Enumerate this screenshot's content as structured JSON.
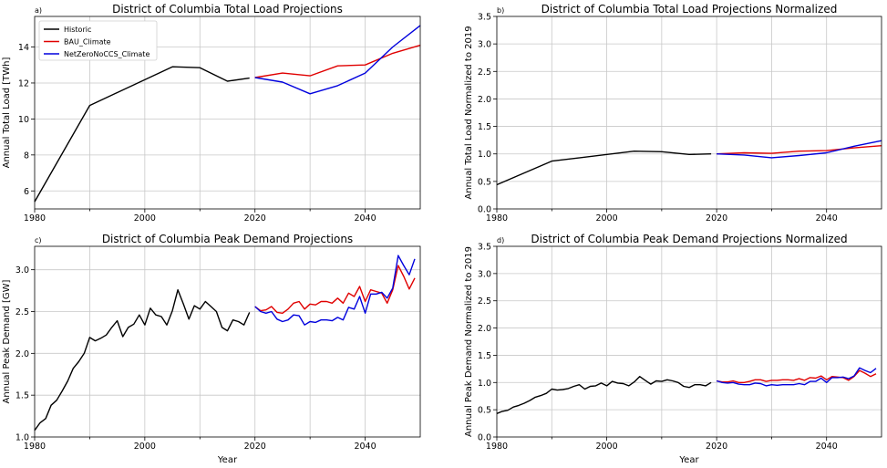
{
  "colors": {
    "historic": "#000000",
    "bau": "#e00000",
    "netzero": "#0000dd",
    "grid": "#c8c8c8",
    "frame": "#000000"
  },
  "legend": [
    {
      "label": "Historic",
      "color": "#000000"
    },
    {
      "label": "BAU_Climate",
      "color": "#e00000"
    },
    {
      "label": "NetZeroNoCCS_Climate",
      "color": "#0000dd"
    }
  ],
  "chart_data": [
    {
      "panel": "a)",
      "type": "line",
      "title": "District of Columbia Total Load Projections",
      "xlabel": "",
      "ylabel": "Annual Total Load [TWh]",
      "xlim": [
        1980,
        2050
      ],
      "ylim": [
        5,
        15.7
      ],
      "xticks": [
        1980,
        2000,
        2020,
        2040
      ],
      "yticks": [
        6,
        8,
        10,
        12,
        14
      ],
      "grid": true,
      "legend": "top-left",
      "series": [
        {
          "name": "Historic",
          "color": "#000000",
          "x": [
            1980,
            1990,
            2005,
            2010,
            2015,
            2019
          ],
          "y": [
            5.4,
            10.75,
            12.9,
            12.85,
            12.1,
            12.27
          ]
        },
        {
          "name": "BAU_Climate",
          "color": "#e00000",
          "x": [
            2020,
            2025,
            2030,
            2035,
            2040,
            2045,
            2050
          ],
          "y": [
            12.3,
            12.55,
            12.4,
            12.95,
            13.0,
            13.65,
            14.1
          ]
        },
        {
          "name": "NetZeroNoCCS_Climate",
          "color": "#0000dd",
          "x": [
            2020,
            2025,
            2030,
            2035,
            2040,
            2045,
            2050
          ],
          "y": [
            12.3,
            12.05,
            11.4,
            11.85,
            12.55,
            14.0,
            15.2
          ]
        }
      ]
    },
    {
      "panel": "b)",
      "type": "line",
      "title": "District of Columbia Total Load Projections Normalized",
      "xlabel": "",
      "ylabel": "Annual Total Load Normalized to 2019",
      "xlim": [
        1980,
        2050
      ],
      "ylim": [
        0,
        3.5
      ],
      "xticks": [
        1980,
        2000,
        2020,
        2040
      ],
      "yticks": [
        0.0,
        0.5,
        1.0,
        1.5,
        2.0,
        2.5,
        3.0,
        3.5
      ],
      "grid": true,
      "legend": "none",
      "series": [
        {
          "name": "Historic",
          "color": "#000000",
          "x": [
            1980,
            1990,
            2005,
            2010,
            2015,
            2019
          ],
          "y": [
            0.44,
            0.87,
            1.05,
            1.04,
            0.99,
            1.0
          ]
        },
        {
          "name": "BAU_Climate",
          "color": "#e00000",
          "x": [
            2020,
            2025,
            2030,
            2035,
            2040,
            2045,
            2050
          ],
          "y": [
            1.0,
            1.02,
            1.01,
            1.05,
            1.06,
            1.11,
            1.15
          ]
        },
        {
          "name": "NetZeroNoCCS_Climate",
          "color": "#0000dd",
          "x": [
            2020,
            2025,
            2030,
            2035,
            2040,
            2045,
            2050
          ],
          "y": [
            1.0,
            0.98,
            0.93,
            0.97,
            1.02,
            1.14,
            1.24
          ]
        }
      ]
    },
    {
      "panel": "c)",
      "type": "line",
      "title": "District of Columbia Peak Demand Projections",
      "xlabel": "Year",
      "ylabel": "Annual Peak Demand [GW]",
      "xlim": [
        1980,
        2050
      ],
      "ylim": [
        1.0,
        3.28
      ],
      "xticks": [
        1980,
        2000,
        2020,
        2040
      ],
      "yticks": [
        1.0,
        1.5,
        2.0,
        2.5,
        3.0
      ],
      "grid": true,
      "legend": "none",
      "series": [
        {
          "name": "Historic",
          "color": "#000000",
          "x": [
            1980,
            1981,
            1982,
            1983,
            1984,
            1985,
            1986,
            1987,
            1988,
            1989,
            1990,
            1991,
            1992,
            1993,
            1994,
            1995,
            1996,
            1997,
            1998,
            1999,
            2000,
            2001,
            2002,
            2003,
            2004,
            2005,
            2006,
            2007,
            2008,
            2009,
            2010,
            2011,
            2012,
            2013,
            2014,
            2015,
            2016,
            2017,
            2018,
            2019
          ],
          "y": [
            1.08,
            1.17,
            1.22,
            1.38,
            1.44,
            1.55,
            1.67,
            1.82,
            1.9,
            2.0,
            2.19,
            2.15,
            2.18,
            2.22,
            2.31,
            2.39,
            2.2,
            2.31,
            2.35,
            2.46,
            2.34,
            2.54,
            2.46,
            2.44,
            2.34,
            2.51,
            2.76,
            2.59,
            2.41,
            2.57,
            2.53,
            2.62,
            2.56,
            2.5,
            2.31,
            2.27,
            2.4,
            2.38,
            2.34,
            2.49
          ]
        },
        {
          "name": "BAU_Climate",
          "color": "#e00000",
          "x": [
            2020,
            2021,
            2022,
            2023,
            2024,
            2025,
            2026,
            2027,
            2028,
            2029,
            2030,
            2031,
            2032,
            2033,
            2034,
            2035,
            2036,
            2037,
            2038,
            2039,
            2040,
            2041,
            2042,
            2043,
            2044,
            2045,
            2046,
            2047,
            2048,
            2049
          ],
          "y": [
            2.56,
            2.51,
            2.52,
            2.56,
            2.49,
            2.48,
            2.53,
            2.6,
            2.62,
            2.53,
            2.59,
            2.58,
            2.62,
            2.62,
            2.6,
            2.66,
            2.6,
            2.72,
            2.68,
            2.8,
            2.62,
            2.76,
            2.74,
            2.72,
            2.6,
            2.76,
            3.05,
            2.92,
            2.77,
            2.9
          ]
        },
        {
          "name": "NetZeroNoCCS_Climate",
          "color": "#0000dd",
          "x": [
            2020,
            2021,
            2022,
            2023,
            2024,
            2025,
            2026,
            2027,
            2028,
            2029,
            2030,
            2031,
            2032,
            2033,
            2034,
            2035,
            2036,
            2037,
            2038,
            2039,
            2040,
            2041,
            2042,
            2043,
            2044,
            2045,
            2046,
            2047,
            2048,
            2049
          ],
          "y": [
            2.56,
            2.5,
            2.48,
            2.5,
            2.41,
            2.38,
            2.4,
            2.46,
            2.45,
            2.34,
            2.38,
            2.37,
            2.4,
            2.4,
            2.39,
            2.43,
            2.4,
            2.55,
            2.53,
            2.68,
            2.48,
            2.71,
            2.71,
            2.73,
            2.66,
            2.78,
            3.17,
            3.05,
            2.94,
            3.13
          ]
        }
      ]
    },
    {
      "panel": "d)",
      "type": "line",
      "title": "District of Columbia Peak Demand Projections Normalized",
      "xlabel": "Year",
      "ylabel": "Annual Peak Demand Normalized to 2019",
      "xlim": [
        1980,
        2050
      ],
      "ylim": [
        0,
        3.5
      ],
      "xticks": [
        1980,
        2000,
        2020,
        2040
      ],
      "yticks": [
        0.0,
        0.5,
        1.0,
        1.5,
        2.0,
        2.5,
        3.0,
        3.5
      ],
      "grid": true,
      "legend": "none",
      "series": [
        {
          "name": "Historic",
          "color": "#000000",
          "x": [
            1980,
            1981,
            1982,
            1983,
            1984,
            1985,
            1986,
            1987,
            1988,
            1989,
            1990,
            1991,
            1992,
            1993,
            1994,
            1995,
            1996,
            1997,
            1998,
            1999,
            2000,
            2001,
            2002,
            2003,
            2004,
            2005,
            2006,
            2007,
            2008,
            2009,
            2010,
            2011,
            2012,
            2013,
            2014,
            2015,
            2016,
            2017,
            2018,
            2019
          ],
          "y": [
            0.43,
            0.47,
            0.49,
            0.55,
            0.58,
            0.62,
            0.67,
            0.73,
            0.76,
            0.8,
            0.88,
            0.86,
            0.87,
            0.89,
            0.93,
            0.96,
            0.88,
            0.93,
            0.94,
            0.99,
            0.94,
            1.02,
            0.99,
            0.98,
            0.94,
            1.01,
            1.11,
            1.04,
            0.97,
            1.03,
            1.02,
            1.05,
            1.03,
            1.0,
            0.93,
            0.91,
            0.96,
            0.96,
            0.94,
            1.0
          ]
        },
        {
          "name": "BAU_Climate",
          "color": "#e00000",
          "x": [
            2020,
            2021,
            2022,
            2023,
            2024,
            2025,
            2026,
            2027,
            2028,
            2029,
            2030,
            2031,
            2032,
            2033,
            2034,
            2035,
            2036,
            2037,
            2038,
            2039,
            2040,
            2041,
            2042,
            2043,
            2044,
            2045,
            2046,
            2047,
            2048,
            2049
          ],
          "y": [
            1.03,
            1.01,
            1.01,
            1.03,
            1.0,
            1.0,
            1.02,
            1.05,
            1.05,
            1.02,
            1.04,
            1.04,
            1.05,
            1.05,
            1.04,
            1.07,
            1.04,
            1.09,
            1.08,
            1.12,
            1.05,
            1.11,
            1.1,
            1.09,
            1.04,
            1.11,
            1.22,
            1.17,
            1.11,
            1.16
          ]
        },
        {
          "name": "NetZeroNoCCS_Climate",
          "color": "#0000dd",
          "x": [
            2020,
            2021,
            2022,
            2023,
            2024,
            2025,
            2026,
            2027,
            2028,
            2029,
            2030,
            2031,
            2032,
            2033,
            2034,
            2035,
            2036,
            2037,
            2038,
            2039,
            2040,
            2041,
            2042,
            2043,
            2044,
            2045,
            2046,
            2047,
            2048,
            2049
          ],
          "y": [
            1.03,
            1.0,
            0.99,
            1.0,
            0.97,
            0.96,
            0.96,
            0.99,
            0.98,
            0.94,
            0.96,
            0.95,
            0.96,
            0.96,
            0.96,
            0.98,
            0.96,
            1.02,
            1.02,
            1.08,
            1.0,
            1.09,
            1.09,
            1.1,
            1.07,
            1.12,
            1.27,
            1.22,
            1.18,
            1.26
          ]
        }
      ]
    }
  ]
}
